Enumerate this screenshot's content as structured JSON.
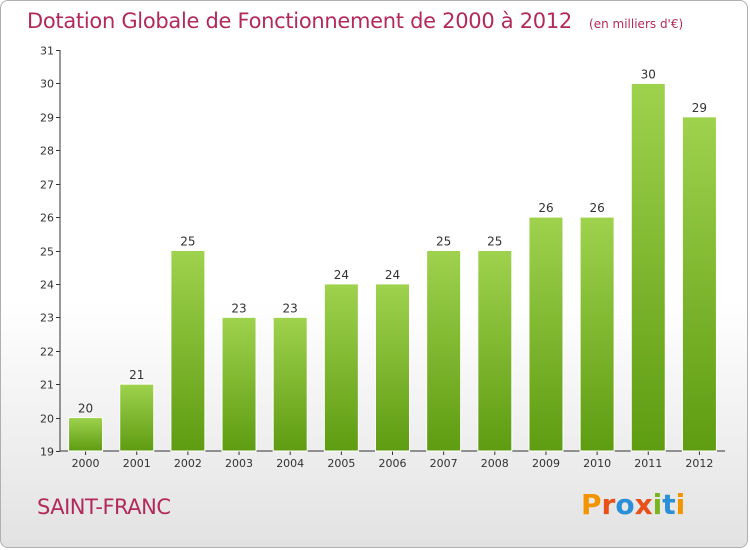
{
  "header": {
    "title": "Dotation Globale de Fonctionnement de 2000 à 2012",
    "subtitle": "(en milliers d'€)"
  },
  "footer": {
    "commune": "SAINT-FRANC",
    "logo_text": "Proxiti"
  },
  "colors": {
    "title": "#b22a5b",
    "bar_top": "#9fd24d",
    "bar_bottom": "#5e9c12",
    "logo": [
      "#f29400",
      "#e8501a",
      "#2a8fd6",
      "#e8501a",
      "#7ab51d",
      "#2a8fd6",
      "#f29400"
    ]
  },
  "chart_data": {
    "type": "bar",
    "title": "Dotation Globale de Fonctionnement de 2000 à 2012",
    "subtitle": "(en milliers d'€)",
    "categories": [
      "2000",
      "2001",
      "2002",
      "2003",
      "2004",
      "2005",
      "2006",
      "2007",
      "2008",
      "2009",
      "2010",
      "2011",
      "2012"
    ],
    "values": [
      20,
      21,
      25,
      23,
      23,
      24,
      24,
      25,
      25,
      26,
      26,
      30,
      29
    ],
    "ylim": [
      19,
      31
    ],
    "yticks": [
      19,
      20,
      21,
      22,
      23,
      24,
      25,
      26,
      27,
      28,
      29,
      30,
      31
    ],
    "grid": false,
    "data_labels": true
  }
}
